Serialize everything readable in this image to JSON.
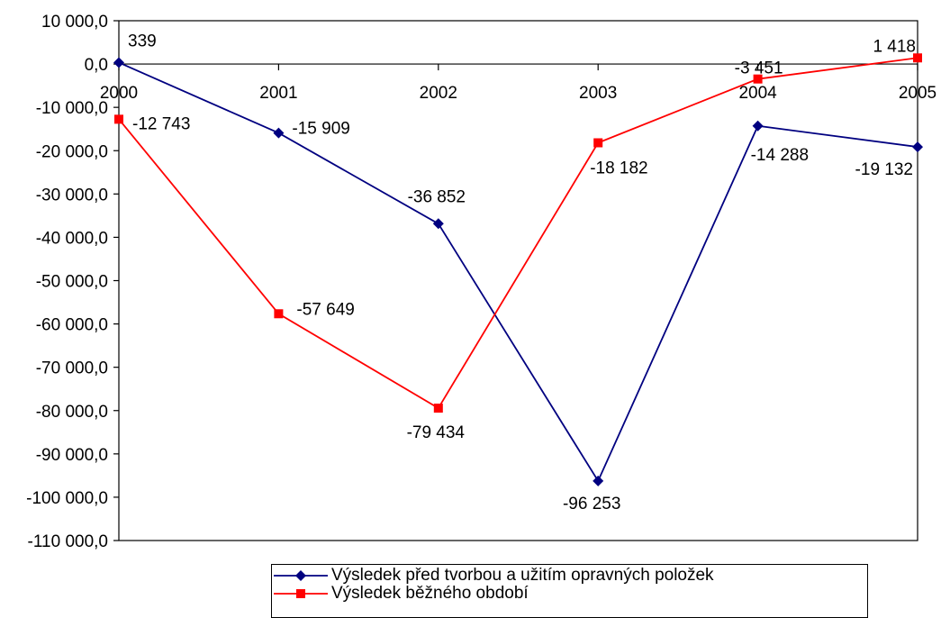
{
  "chart_data": {
    "type": "line",
    "categories": [
      "2000",
      "2001",
      "2002",
      "2003",
      "2004",
      "2005"
    ],
    "ylim": [
      -110000,
      10000
    ],
    "ytick_step": 10000,
    "ytick_labels": [
      "10 000,0",
      "0,0",
      "-10 000,0",
      "-20 000,0",
      "-30 000,0",
      "-40 000,0",
      "-50 000,0",
      "-60 000,0",
      "-70 000,0",
      "-80 000,0",
      "-90 000,0",
      "-100 000,0",
      "-110 000,0"
    ],
    "grid": false,
    "legend_position": "bottom",
    "series": [
      {
        "name": "Výsledek před tvorbou a užitím opravných položek",
        "values": [
          339,
          -15909,
          -36852,
          -96253,
          -14288,
          -19132
        ],
        "labels": [
          "339",
          "-15 909",
          "-36 852",
          "-96 253",
          "-14 288",
          "-19 132"
        ],
        "color": "#000080",
        "marker": "diamond"
      },
      {
        "name": "Výsledek běžného období",
        "values": [
          -12743,
          -57649,
          -79434,
          -18182,
          -3451,
          1418
        ],
        "labels": [
          "-12 743",
          "-57 649",
          "-79 434",
          "-18 182",
          "-3 451",
          "1 418"
        ],
        "color": "#ff0000",
        "marker": "square"
      }
    ]
  }
}
